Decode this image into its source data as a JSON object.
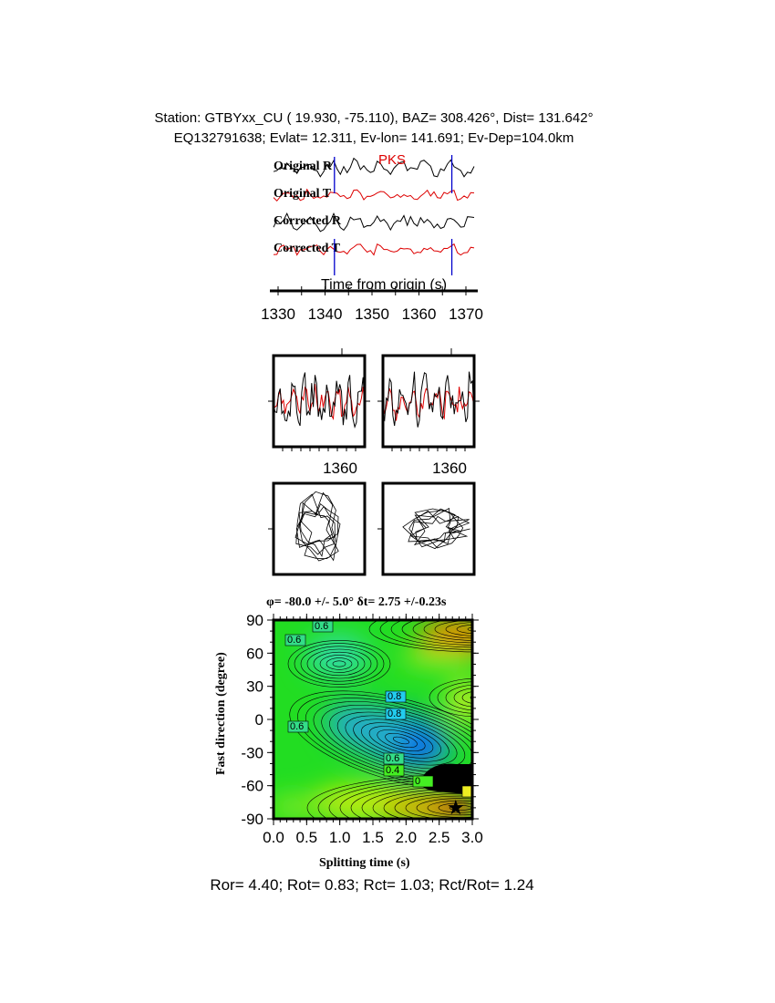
{
  "header": {
    "line1": "Station: GTBYxx_CU (  19.930,  -75.110), BAZ=  308.426°, Dist=  131.642°",
    "line2": "EQ132791638; Evlat=  12.311, Ev-lon= 141.691; Ev-Dep=104.0km"
  },
  "chart_data": [
    {
      "type": "line",
      "phase_label": "PKS",
      "trace_labels": [
        "Original R",
        "Original T",
        "Corrected R",
        "Corrected T"
      ],
      "trace_colors": [
        "#000000",
        "#dd0000",
        "#000000",
        "#dd0000"
      ],
      "window_marks": [
        1342,
        1367
      ],
      "window_color": "#0000cc",
      "xlabel": "Time from origin (s)",
      "xticks": [
        "1330",
        "1340",
        "1350",
        "1360",
        "1370"
      ],
      "xlim": [
        1329,
        1372
      ]
    },
    {
      "type": "line",
      "panels": [
        "original",
        "corrected"
      ],
      "xticks": [
        "1360",
        "1360"
      ]
    },
    {
      "type": "scatter",
      "panels": [
        "particle-motion-original",
        "particle-motion-corrected"
      ]
    },
    {
      "type": "heatmap",
      "title": "φ= -80.0 +/- 5.0° δt= 2.75 +/-0.23s",
      "xlabel": "Splitting time (s)",
      "ylabel": "Fast direction (degree)",
      "xticks": [
        "0.0",
        "0.5",
        "1.0",
        "1.5",
        "2.0",
        "2.5",
        "3.0"
      ],
      "yticks": [
        "90",
        "60",
        "30",
        "0",
        "-30",
        "-60",
        "-90"
      ],
      "xlim": [
        0,
        3
      ],
      "ylim": [
        -90,
        90
      ],
      "contour_labels": [
        "0.6",
        "0.6",
        "0.6",
        "0.8",
        "0.8",
        "0.6",
        "0.4",
        "0"
      ],
      "best_fit": {
        "dt": 2.75,
        "phi": -80.0
      }
    }
  ],
  "footer": "Ror= 4.40; Rot= 0.83; Rct= 1.03; Rct/Rot= 1.24"
}
